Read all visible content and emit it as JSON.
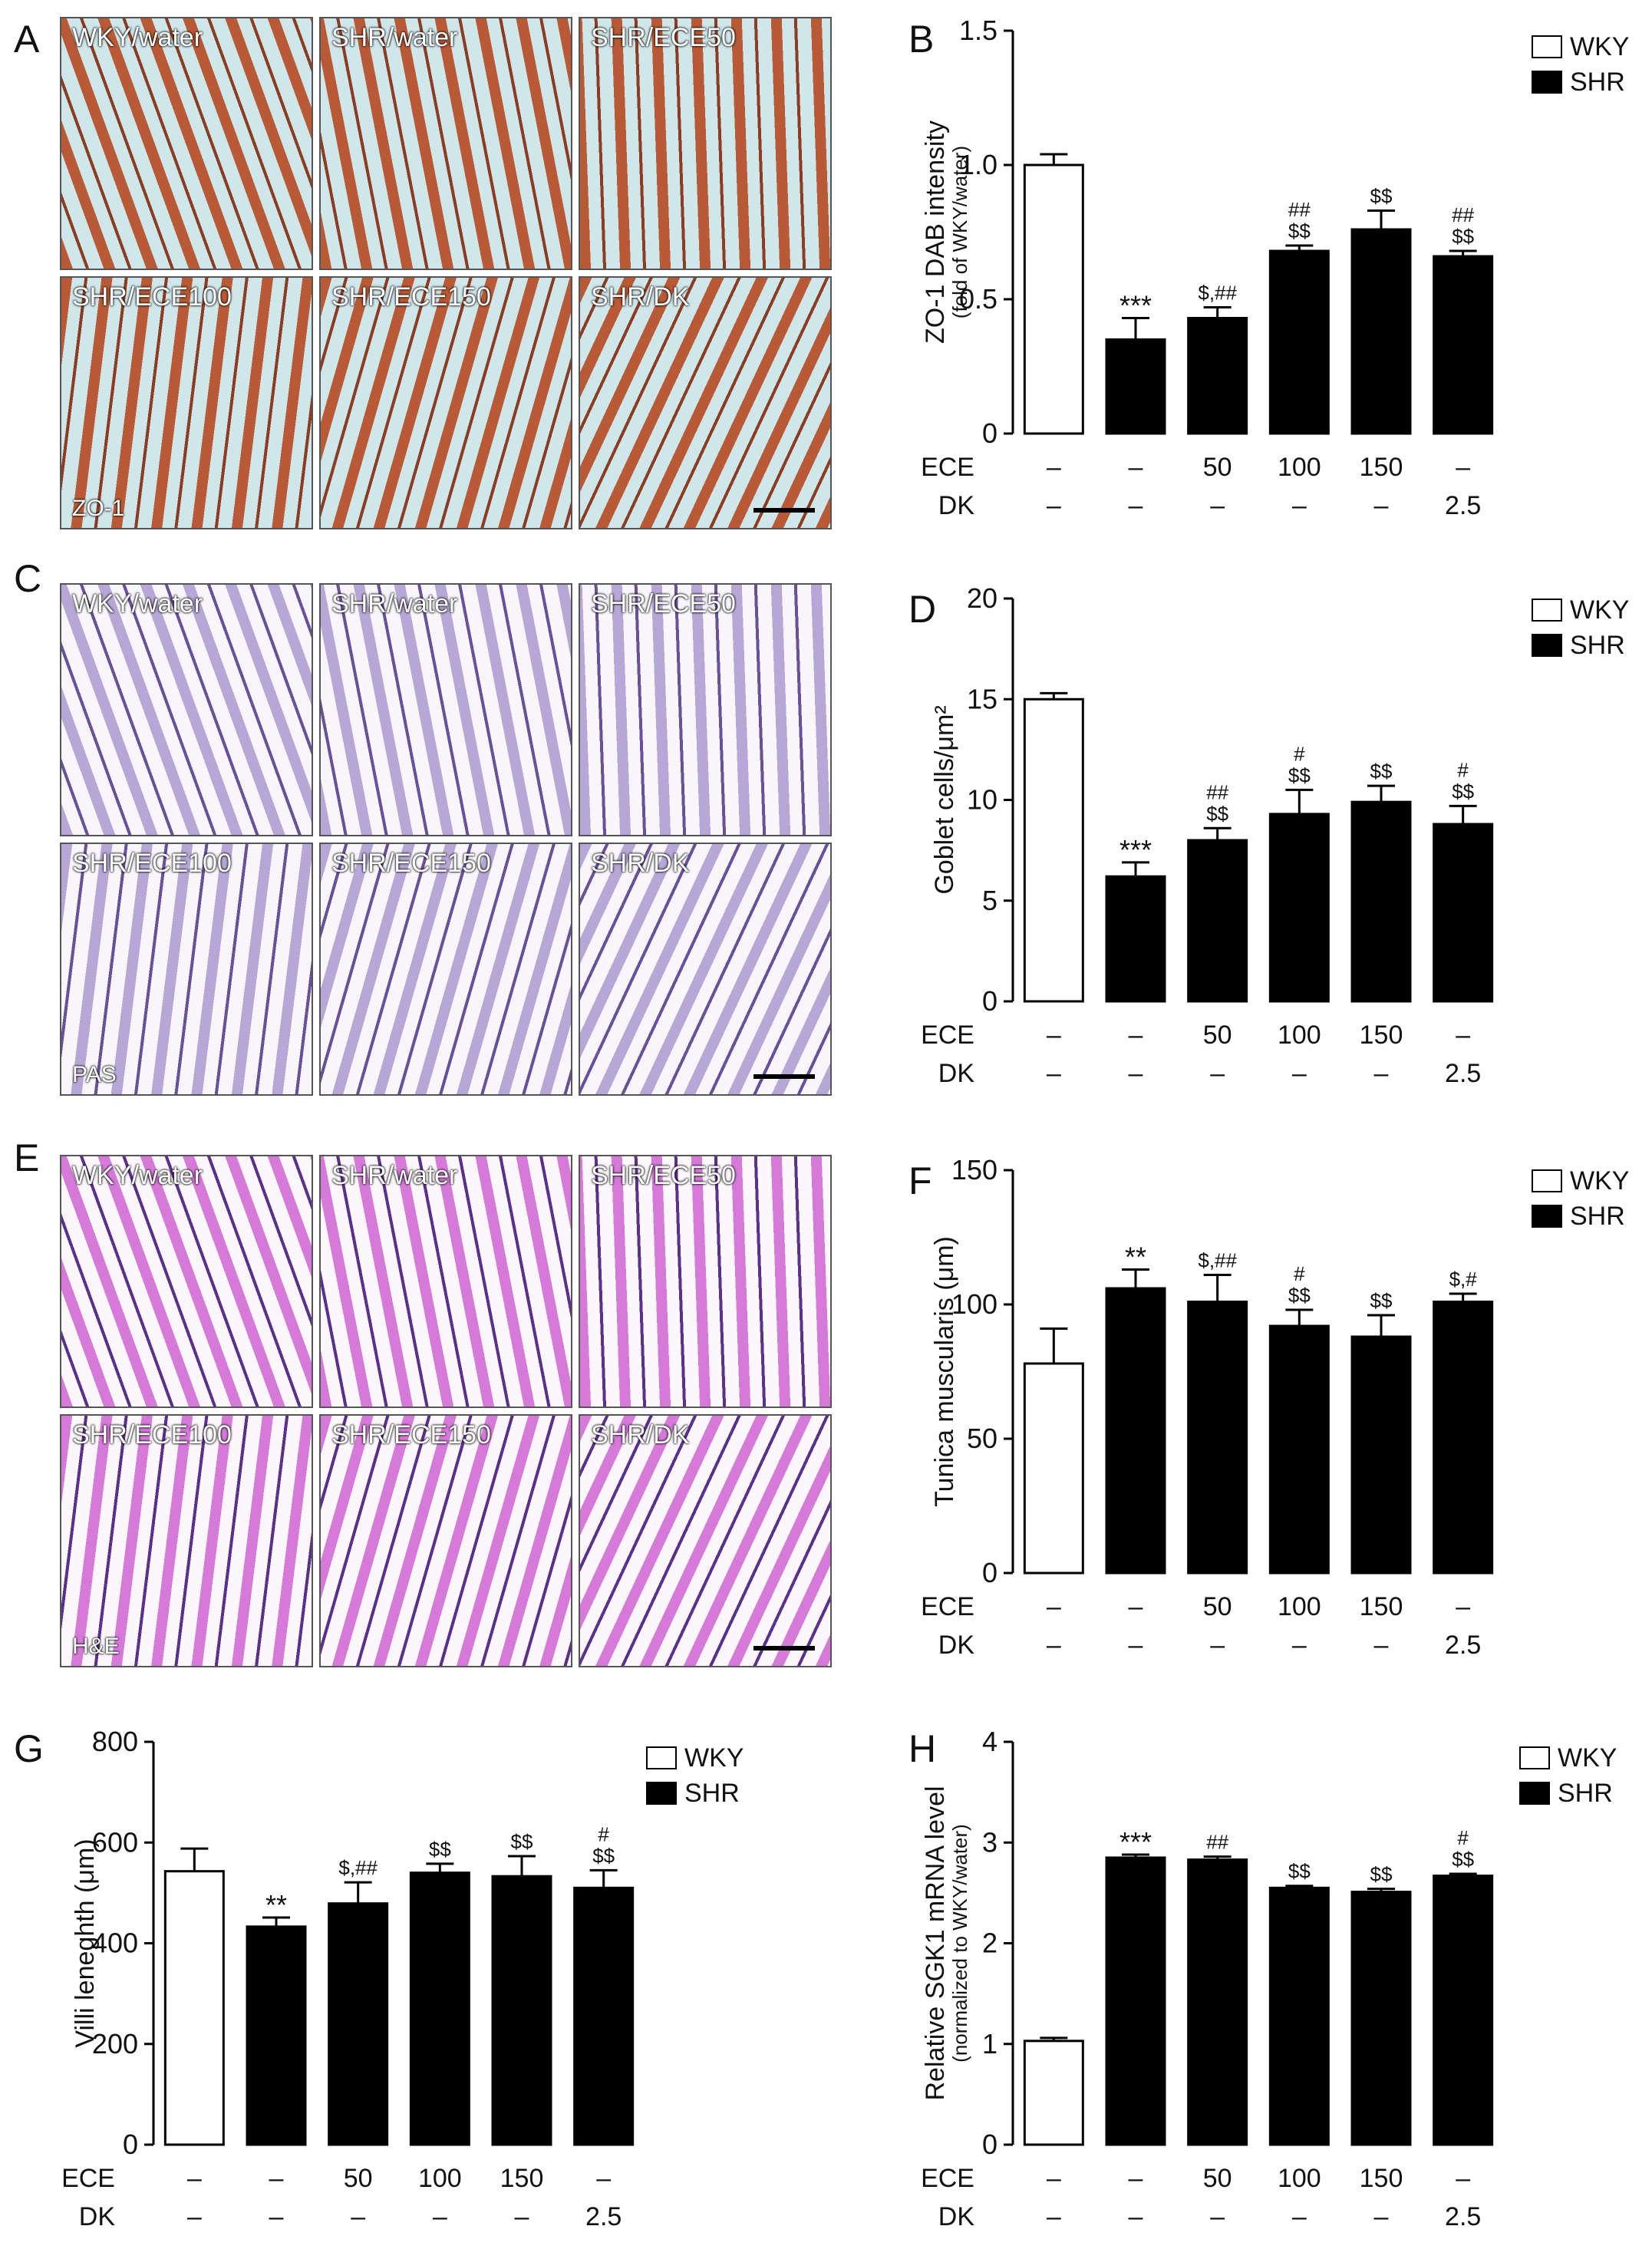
{
  "panel_letters": [
    "A",
    "B",
    "C",
    "D",
    "E",
    "F",
    "G",
    "H"
  ],
  "micrographs": [
    {
      "id": "A",
      "stain_label": "ZO-1",
      "tiles": [
        "WKY/water",
        "SHR/water",
        "SHR/ECE50",
        "SHR/ECE100",
        "SHR/ECE150",
        "SHR/DK"
      ],
      "palette": {
        "bg": "#cfe6ea",
        "tissue": "#b85a35",
        "dark": "#8c3c20"
      }
    },
    {
      "id": "C",
      "stain_label": "PAS",
      "tiles": [
        "WKY/water",
        "SHR/water",
        "SHR/ECE50",
        "SHR/ECE100",
        "SHR/ECE150",
        "SHR/DK"
      ],
      "palette": {
        "bg": "#f8f6fa",
        "tissue": "#b7a7d6",
        "dark": "#6a4f9a"
      }
    },
    {
      "id": "E",
      "stain_label": "H&E",
      "tiles": [
        "WKY/water",
        "SHR/water",
        "SHR/ECE50",
        "SHR/ECE100",
        "SHR/ECE150",
        "SHR/DK"
      ],
      "palette": {
        "bg": "#fbf7fb",
        "tissue": "#d57ad8",
        "dark": "#5b2f8c"
      }
    }
  ],
  "legend": {
    "wky": "WKY",
    "shr": "SHR"
  },
  "treatment_rows": {
    "ece_label": "ECE",
    "dk_label": "DK",
    "ece_values": [
      "–",
      "–",
      "50",
      "100",
      "150",
      "–"
    ],
    "dk_values": [
      "–",
      "–",
      "–",
      "–",
      "–",
      "2.5"
    ]
  },
  "chart_data": [
    {
      "id": "B",
      "type": "bar",
      "ylabel": "ZO-1 DAB intensity",
      "ylabel2": "(fold of WKY/water)",
      "ylim": [
        0,
        1.5
      ],
      "yticks": [
        "0",
        "0.5",
        "1.0",
        "1.5"
      ],
      "ytick_values": [
        0,
        0.5,
        1.0,
        1.5
      ],
      "categories": [
        "WKY",
        "SHR",
        "ECE50",
        "ECE100",
        "ECE150",
        "DK2.5"
      ],
      "series": [
        {
          "values": [
            1.0,
            0.35,
            0.43,
            0.68,
            0.76,
            0.66
          ],
          "errors": [
            0.04,
            0.08,
            0.04,
            0.02,
            0.07,
            0.02
          ]
        }
      ],
      "groups": [
        "WKY",
        "SHR",
        "SHR",
        "SHR",
        "SHR",
        "SHR"
      ],
      "annotations": [
        [],
        [
          "***"
        ],
        [
          "$,##"
        ],
        [
          "##",
          "$$"
        ],
        [
          "$$"
        ],
        [
          "##",
          "$$"
        ]
      ]
    },
    {
      "id": "D",
      "type": "bar",
      "ylabel": "Goblet cells/μm²",
      "ylabel2": "",
      "ylim": [
        0,
        20
      ],
      "yticks": [
        "0",
        "5",
        "10",
        "15",
        "20"
      ],
      "ytick_values": [
        0,
        5,
        10,
        15,
        20
      ],
      "categories": [
        "WKY",
        "SHR",
        "ECE50",
        "ECE100",
        "ECE150",
        "DK2.5"
      ],
      "series": [
        {
          "values": [
            15.0,
            6.2,
            8.0,
            9.3,
            9.9,
            8.8
          ],
          "errors": [
            0.3,
            0.7,
            0.6,
            1.2,
            0.8,
            0.9
          ]
        }
      ],
      "groups": [
        "WKY",
        "SHR",
        "SHR",
        "SHR",
        "SHR",
        "SHR"
      ],
      "annotations": [
        [],
        [
          "***"
        ],
        [
          "##",
          "$$"
        ],
        [
          "#",
          "$$"
        ],
        [
          "$$"
        ],
        [
          "#",
          "$$"
        ]
      ]
    },
    {
      "id": "F",
      "type": "bar",
      "ylabel": "Tunica muscularis (μm)",
      "ylabel2": "",
      "ylim": [
        0,
        150
      ],
      "yticks": [
        "0",
        "50",
        "100",
        "150"
      ],
      "ytick_values": [
        0,
        50,
        100,
        150
      ],
      "categories": [
        "WKY",
        "SHR",
        "ECE50",
        "ECE100",
        "ECE150",
        "DK2.5"
      ],
      "series": [
        {
          "values": [
            78,
            106,
            101,
            92,
            88,
            101
          ],
          "errors": [
            13,
            7,
            10,
            6,
            8,
            3
          ]
        }
      ],
      "groups": [
        "WKY",
        "SHR",
        "SHR",
        "SHR",
        "SHR",
        "SHR"
      ],
      "annotations": [
        [],
        [
          "**"
        ],
        [
          "$,##"
        ],
        [
          "#",
          "$$"
        ],
        [
          "$$"
        ],
        [
          "$,#"
        ]
      ]
    },
    {
      "id": "G",
      "type": "bar",
      "ylabel": "Villi leneghth (μm)",
      "ylabel2": "",
      "ylim": [
        0,
        800
      ],
      "yticks": [
        "0",
        "200",
        "400",
        "600",
        "800"
      ],
      "ytick_values": [
        0,
        200,
        400,
        600,
        800
      ],
      "categories": [
        "WKY",
        "SHR",
        "ECE50",
        "ECE100",
        "ECE150",
        "DK2.5"
      ],
      "series": [
        {
          "values": [
            543,
            433,
            479,
            540,
            533,
            510
          ],
          "errors": [
            45,
            18,
            42,
            18,
            40,
            35
          ]
        }
      ],
      "groups": [
        "WKY",
        "SHR",
        "SHR",
        "SHR",
        "SHR",
        "SHR"
      ],
      "annotations": [
        [],
        [
          "**"
        ],
        [
          "$,##"
        ],
        [
          "$$"
        ],
        [
          "$$"
        ],
        [
          "#",
          "$$"
        ]
      ]
    },
    {
      "id": "H",
      "type": "bar",
      "ylabel": "Relative SGK1 mRNA level",
      "ylabel2": "(normalized to WKY/water)",
      "ylim": [
        0,
        4
      ],
      "yticks": [
        "0",
        "1",
        "2",
        "3",
        "4"
      ],
      "ytick_values": [
        0,
        1,
        2,
        3,
        4
      ],
      "categories": [
        "WKY",
        "SHR",
        "ECE50",
        "ECE100",
        "ECE150",
        "DK2.5"
      ],
      "series": [
        {
          "values": [
            1.03,
            2.85,
            2.83,
            2.55,
            2.51,
            2.67
          ],
          "errors": [
            0.03,
            0.03,
            0.03,
            0.02,
            0.03,
            0.02
          ]
        }
      ],
      "groups": [
        "WKY",
        "SHR",
        "SHR",
        "SHR",
        "SHR",
        "SHR"
      ],
      "annotations": [
        [],
        [
          "***"
        ],
        [
          "##"
        ],
        [
          "$$"
        ],
        [
          "$$"
        ],
        [
          "#",
          "$$"
        ]
      ]
    }
  ]
}
